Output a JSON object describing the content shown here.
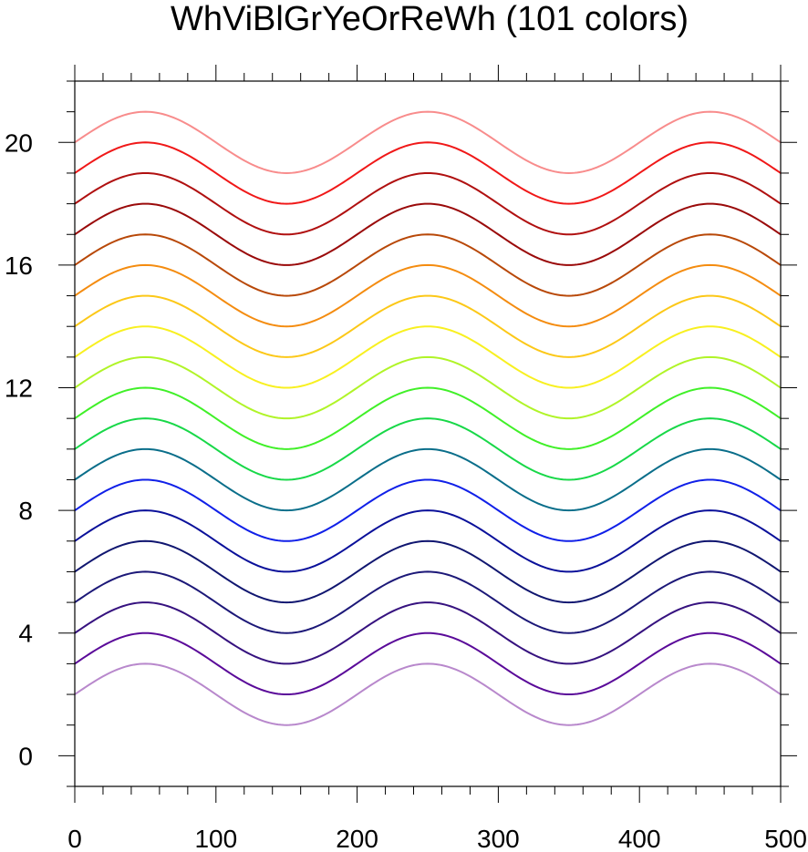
{
  "chart_data": {
    "type": "line",
    "title": "WhViBlGrYeOrReWh (101 colors)",
    "xlabel": "",
    "ylabel": "",
    "xlim": [
      0,
      500
    ],
    "ylim": [
      -1,
      22
    ],
    "x_ticks": [
      0,
      100,
      200,
      300,
      400,
      500
    ],
    "x_tick_labels": [
      "0",
      "100",
      "200",
      "300",
      "400",
      "500"
    ],
    "y_ticks": [
      0,
      4,
      8,
      12,
      16,
      20
    ],
    "y_tick_labels": [
      "0",
      "4",
      "8",
      "12",
      "16",
      "20"
    ],
    "x_minor_step": 20,
    "y_minor_step": 1,
    "grid": false,
    "legend": "none",
    "curve": "y = offset + sin(2*pi*(x - 50)/200 + pi/2); wave amplitude 1, period 200",
    "x": [
      0,
      25,
      50,
      75,
      100,
      125,
      150,
      175,
      200,
      225,
      250,
      275,
      300,
      325,
      350,
      375,
      400,
      425,
      450,
      475,
      500
    ],
    "series": [
      {
        "offset": 2,
        "color": "#b888cc"
      },
      {
        "offset": 3,
        "color": "#5a0a99"
      },
      {
        "offset": 4,
        "color": "#36127f"
      },
      {
        "offset": 5,
        "color": "#1c1878"
      },
      {
        "offset": 6,
        "color": "#101670"
      },
      {
        "offset": 7,
        "color": "#0a109a"
      },
      {
        "offset": 8,
        "color": "#1020e8"
      },
      {
        "offset": 9,
        "color": "#0a6e8a"
      },
      {
        "offset": 10,
        "color": "#18d848"
      },
      {
        "offset": 11,
        "color": "#40f028"
      },
      {
        "offset": 12,
        "color": "#b0f428"
      },
      {
        "offset": 13,
        "color": "#f8f020"
      },
      {
        "offset": 14,
        "color": "#fcc818"
      },
      {
        "offset": 15,
        "color": "#f48c10"
      },
      {
        "offset": 16,
        "color": "#b84808"
      },
      {
        "offset": 17,
        "color": "#9a0a0a"
      },
      {
        "offset": 18,
        "color": "#b01010"
      },
      {
        "offset": 19,
        "color": "#f01818"
      },
      {
        "offset": 20,
        "color": "#f88c8c"
      }
    ]
  }
}
